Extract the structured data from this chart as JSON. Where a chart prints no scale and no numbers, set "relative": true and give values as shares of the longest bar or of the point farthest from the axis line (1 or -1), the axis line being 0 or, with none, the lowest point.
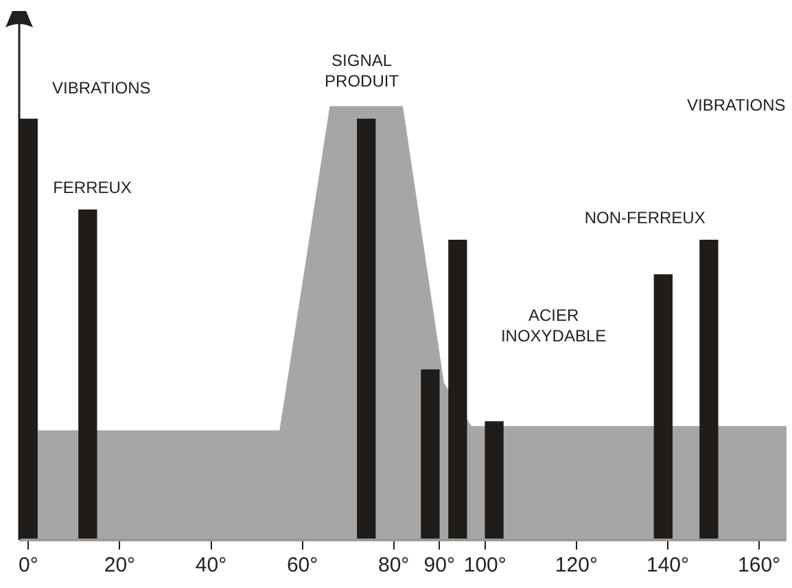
{
  "chart_data": {
    "type": "bar",
    "relative": true,
    "xlim": [
      -2,
      166
    ],
    "xticks": [
      {
        "value": 0,
        "label": "0°"
      },
      {
        "value": 20,
        "label": "20°"
      },
      {
        "value": 40,
        "label": "40°"
      },
      {
        "value": 60,
        "label": "60°"
      },
      {
        "value": 80,
        "label": "80°"
      },
      {
        "value": 90,
        "label": "90°"
      },
      {
        "value": 100,
        "label": "100°"
      },
      {
        "value": 120,
        "label": "120°"
      },
      {
        "value": 140,
        "label": "140°"
      },
      {
        "value": 160,
        "label": "160°"
      }
    ],
    "series": [
      {
        "type": "area",
        "color": "#a6a6a6",
        "x": [
          2,
          55,
          66,
          82,
          91,
          97,
          166
        ],
        "values": [
          0.25,
          0.25,
          1,
          1,
          0.36,
          0.26,
          0.26
        ]
      },
      {
        "color": "#201c19",
        "x": [
          0,
          13,
          74,
          88,
          94,
          102,
          139,
          149
        ],
        "values": [
          0.97,
          0.76,
          0.97,
          0.39,
          0.69,
          0.27,
          0.61,
          0.69
        ]
      }
    ],
    "annotations": [
      "VIBRATIONS",
      "FERREUX",
      "SIGNAL\nPRODUIT",
      "ACIER\nINOXYDABLE",
      "NON-FERREUX",
      "VIBRATIONS"
    ],
    "legend": false,
    "grid": false
  }
}
